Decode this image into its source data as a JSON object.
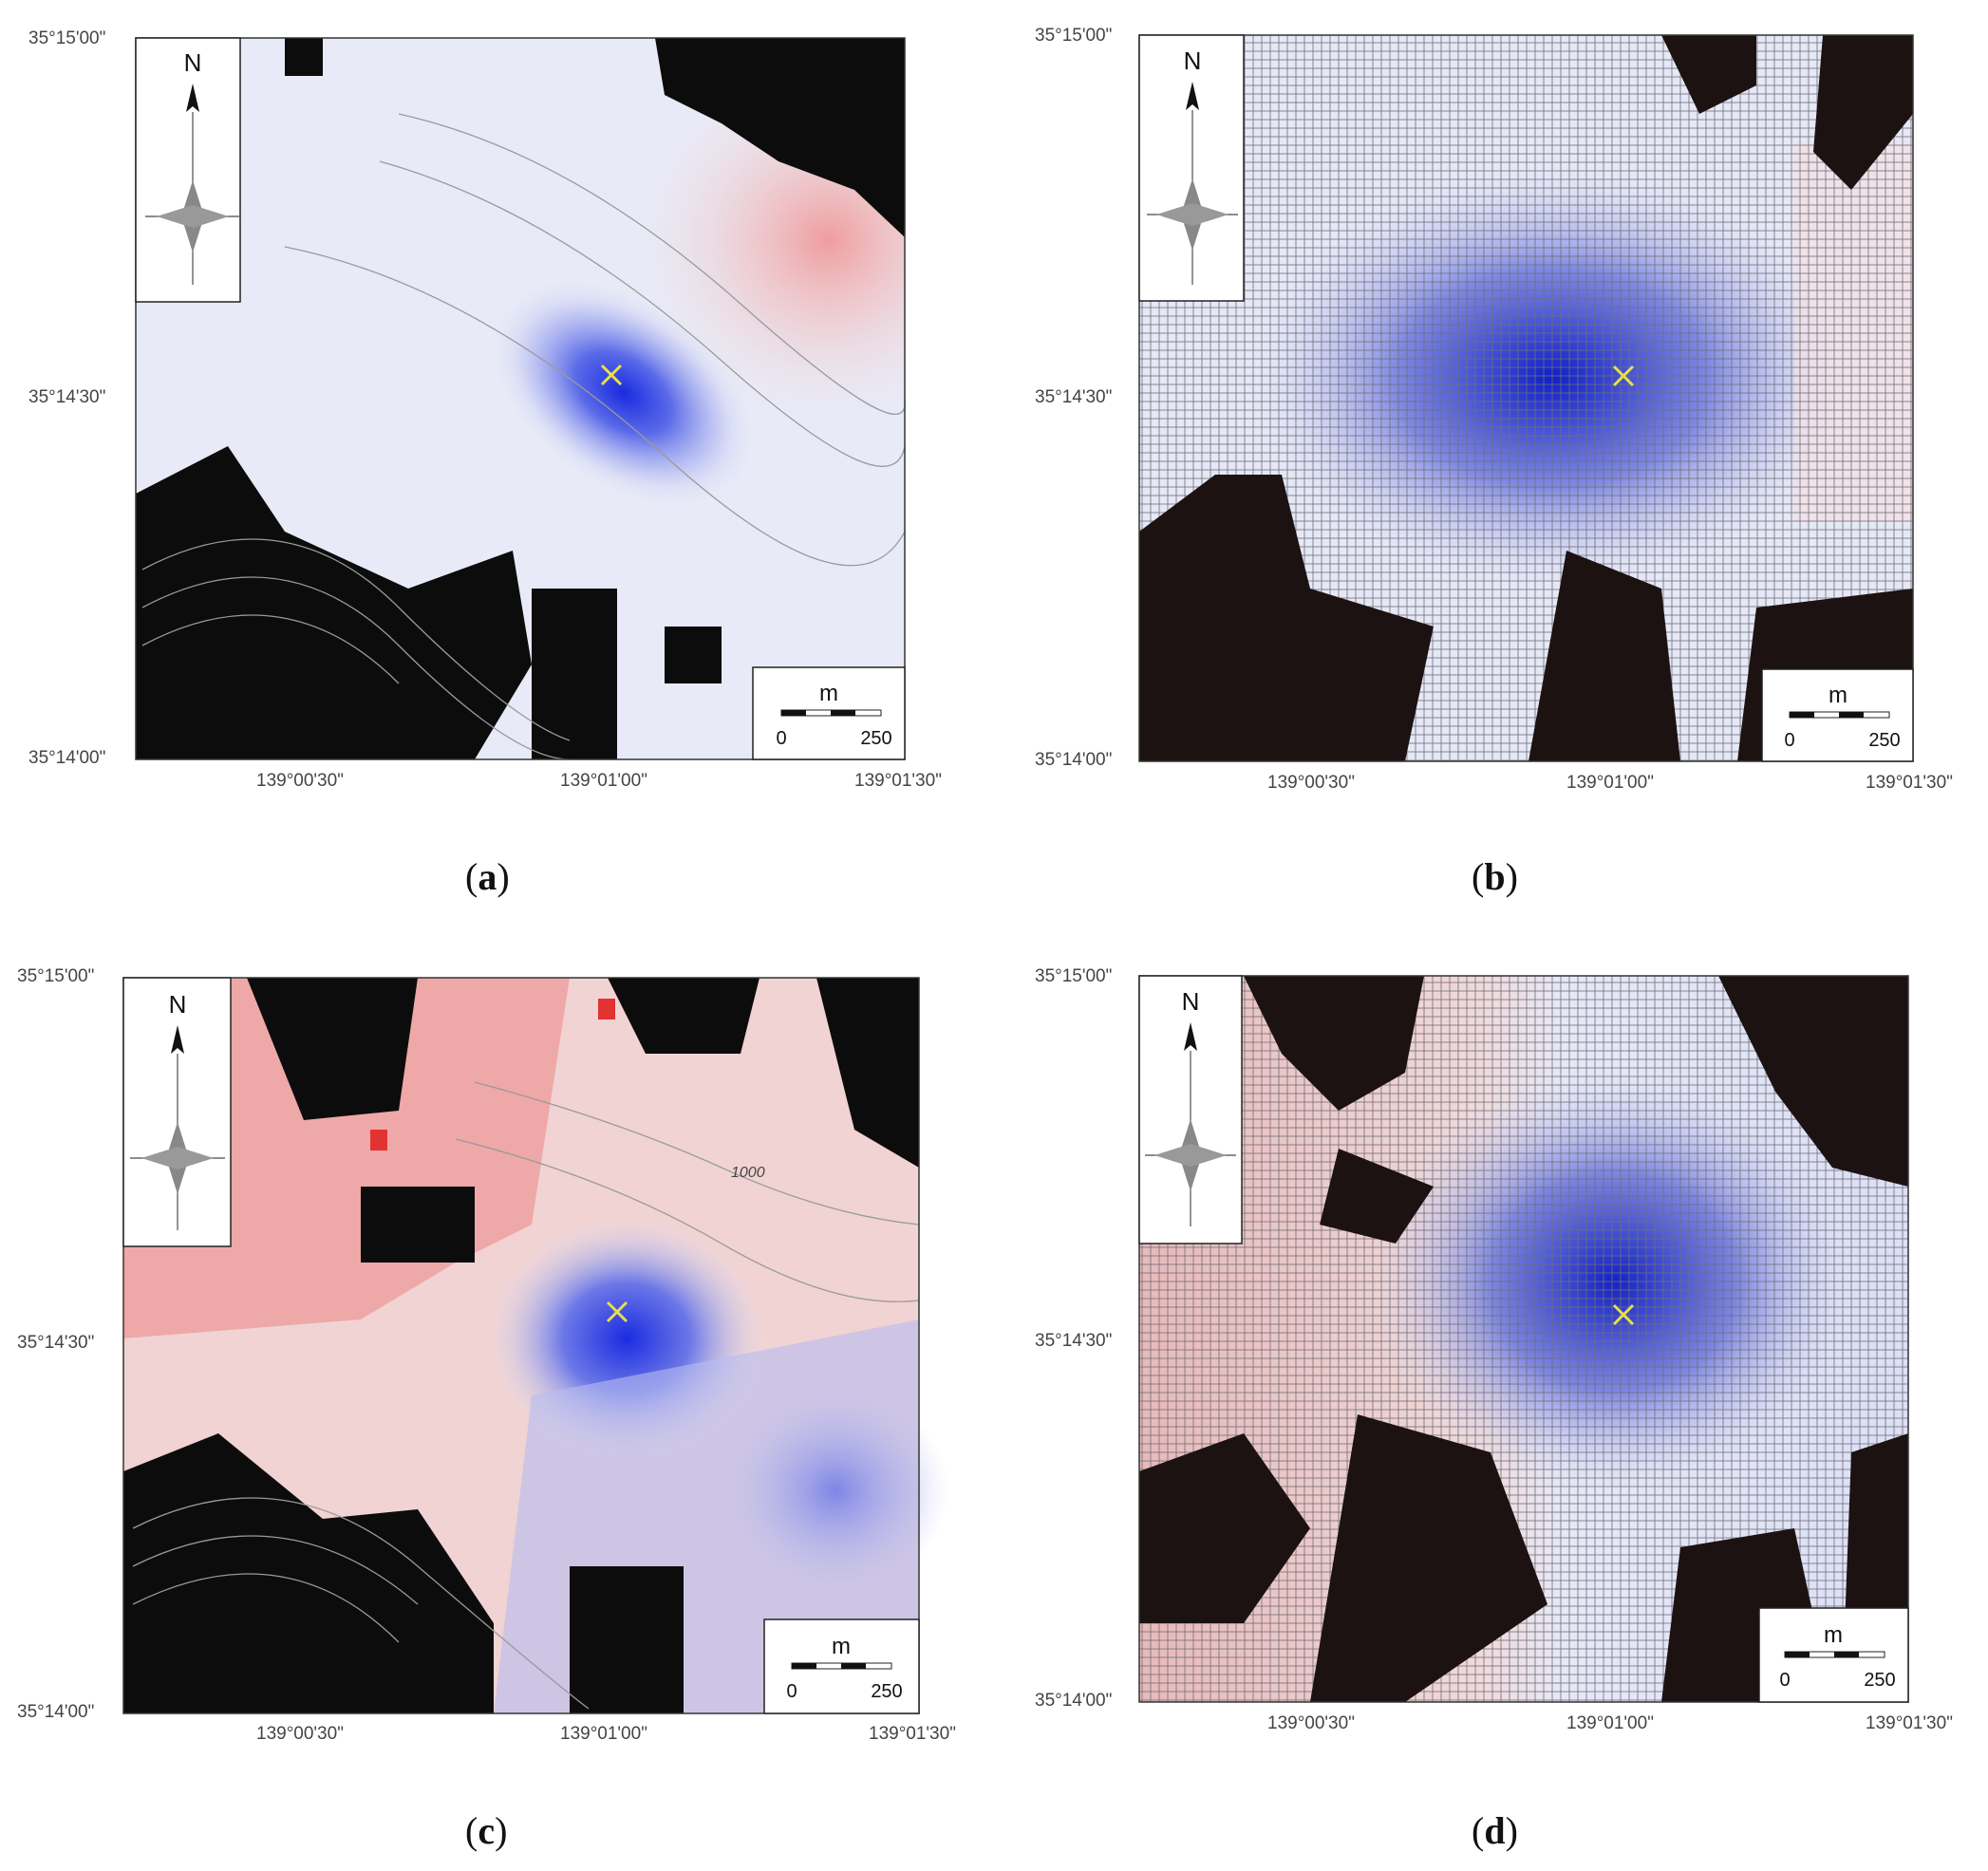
{
  "panels": [
    {
      "id": "a",
      "caption_letter": "a",
      "style": "measured",
      "cross_color": "#e8e43c",
      "lat_labels": [
        "35°15'00\"",
        "35°14'30\"",
        "35°14'00\""
      ],
      "lon_labels": [
        "139°00'30\"",
        "139°01'00\"",
        "139°01'30\""
      ],
      "scale": {
        "unit": "m",
        "min": "0",
        "max": "250"
      },
      "north": "N",
      "contour_label": ""
    },
    {
      "id": "b",
      "caption_letter": "b",
      "style": "model",
      "lat_labels": [
        "35°15'00\"",
        "35°14'30\"",
        "35°14'00\""
      ],
      "lon_labels": [
        "139°00'30\"",
        "139°01'00\"",
        "139°01'30\""
      ],
      "scale": {
        "unit": "m",
        "min": "0",
        "max": "250"
      },
      "north": "N",
      "contour_label": ""
    },
    {
      "id": "c",
      "caption_letter": "c",
      "style": "measured",
      "lat_labels": [
        "35°15'00\"",
        "35°14'30\"",
        "35°14'00\""
      ],
      "lon_labels": [
        "139°00'30\"",
        "139°01'00\"",
        "139°01'30\""
      ],
      "scale": {
        "unit": "m",
        "min": "0",
        "max": "250"
      },
      "north": "N",
      "contour_label": "1000"
    },
    {
      "id": "d",
      "caption_letter": "d",
      "style": "model",
      "lat_labels": [
        "35°15'00\"",
        "35°14'30\"",
        "35°14'00\""
      ],
      "lon_labels": [
        "139°00'30\"",
        "139°01'00\"",
        "139°01'30\""
      ],
      "scale": {
        "unit": "m",
        "min": "0",
        "max": "250"
      },
      "north": "N",
      "contour_label": ""
    }
  ],
  "colors": {
    "positive": "#e8a0a0",
    "negative": "#2a36d8",
    "neutral": "#eeeef8",
    "masked": "#140c0c",
    "marker": "#e6e04a"
  }
}
